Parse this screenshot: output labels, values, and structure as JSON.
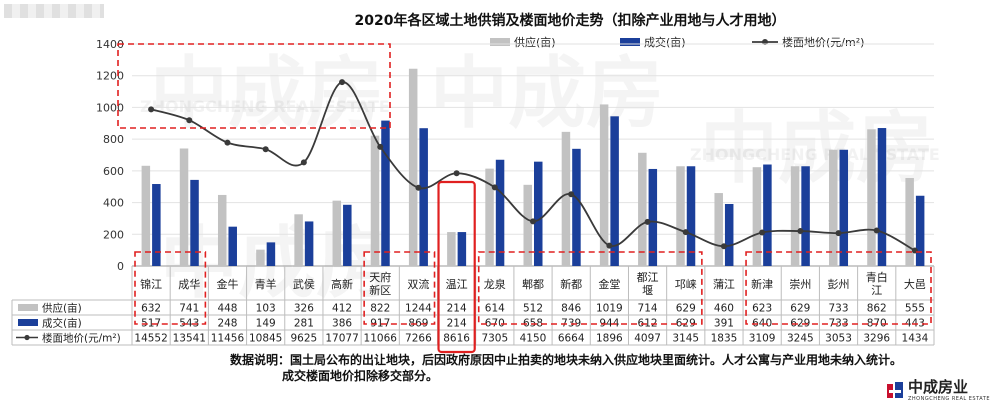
{
  "chart_data": {
    "type": "bar",
    "title": "2020年各区域土地供销及楼面地价走势（扣除产业用地与人才用地）",
    "categories": [
      "锦江",
      "成华",
      "金牛",
      "青羊",
      "武侯",
      "高新",
      "天府新区",
      "双流",
      "温江",
      "龙泉",
      "郫都",
      "新都",
      "金堂",
      "都江堰",
      "邛崃",
      "蒲江",
      "新津",
      "崇州",
      "彭州",
      "青白江",
      "大邑"
    ],
    "category_lines": [
      [
        "锦江"
      ],
      [
        "成华"
      ],
      [
        "金牛"
      ],
      [
        "青羊"
      ],
      [
        "武侯"
      ],
      [
        "高新"
      ],
      [
        "天府",
        "新区"
      ],
      [
        "双流"
      ],
      [
        "温江"
      ],
      [
        "龙泉"
      ],
      [
        "郫都"
      ],
      [
        "新都"
      ],
      [
        "金堂"
      ],
      [
        "都江",
        "堰"
      ],
      [
        "邛崃"
      ],
      [
        "蒲江"
      ],
      [
        "新津"
      ],
      [
        "崇州"
      ],
      [
        "彭州"
      ],
      [
        "青白",
        "江"
      ],
      [
        "大邑"
      ]
    ],
    "series": [
      {
        "name": "供应(亩)",
        "type": "bar",
        "color": "#c2c2c2",
        "values": [
          632,
          741,
          448,
          103,
          326,
          412,
          822,
          1244,
          214,
          614,
          512,
          846,
          1019,
          714,
          629,
          460,
          623,
          629,
          733,
          862,
          555
        ]
      },
      {
        "name": "成交(亩)",
        "type": "bar",
        "color": "#1b3f9a",
        "values": [
          517,
          543,
          248,
          149,
          281,
          386,
          917,
          869,
          214,
          670,
          658,
          739,
          944,
          612,
          629,
          391,
          640,
          629,
          733,
          870,
          443
        ]
      },
      {
        "name": "楼面地价(元/m²)",
        "type": "line",
        "color": "#3a3a3a",
        "values": [
          14552,
          13541,
          11456,
          10845,
          9625,
          17077,
          11066,
          7266,
          8616,
          7305,
          4150,
          6664,
          1896,
          4097,
          3145,
          1835,
          3109,
          3245,
          3053,
          3296,
          1434
        ]
      }
    ],
    "table_row_labels": [
      "供应(亩)",
      "成交(亩)",
      "楼面地价(元/m²)"
    ],
    "ylim": [
      0,
      1400
    ],
    "yticks": [
      0,
      200,
      400,
      600,
      800,
      1000,
      1200,
      1400
    ],
    "legend_position": "top-right",
    "grid": true,
    "note_line1": "数据说明：国土局公布的出让地块，后因政府原因中止拍卖的地块未纳入供应地块里面统计。人才公寓与产业用地未纳入统计。",
    "note_line2": "成交楼面地价扣除移交部分。",
    "highlight_color": "#e02020"
  },
  "brand": {
    "name": "中成房业",
    "sub": "ZHONGCHENG REAL ESTATE",
    "watermark_cn": "中成房",
    "watermark_en": "ZHONGCHENG REAL ESTATE"
  }
}
